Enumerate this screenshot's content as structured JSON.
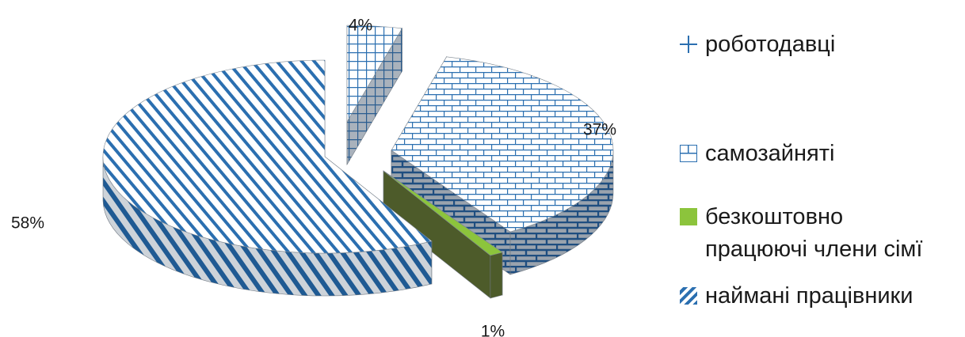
{
  "chart_data": {
    "type": "pie",
    "title": "",
    "slices": [
      {
        "name": "роботодавці",
        "value": 4,
        "label": "4%",
        "color": "#2b6fb0",
        "pattern": "grid"
      },
      {
        "name": "самозайняті",
        "value": 37,
        "label": "37%",
        "color": "#2b6fb0",
        "pattern": "brick"
      },
      {
        "name": "безкоштовно працюючі члени сімї",
        "value": 1,
        "label": "1%",
        "color": "#8cc43c",
        "pattern": "solid"
      },
      {
        "name": "наймані працівники",
        "value": 58,
        "label": "58%",
        "color": "#2b6fb0",
        "pattern": "diagonal-stripes"
      }
    ],
    "exploded": true,
    "three_d": true,
    "legend_position": "right"
  },
  "legend": {
    "items": [
      {
        "lines": [
          "роботодавці"
        ],
        "icon": "plus-grid-icon"
      },
      {
        "lines": [
          "самозайняті"
        ],
        "icon": "brick-icon"
      },
      {
        "lines": [
          "безкоштовно",
          "працюючі члени сімї"
        ],
        "icon": "solid-square-icon"
      },
      {
        "lines": [
          "наймані працівники"
        ],
        "icon": "diagonal-stripe-icon"
      }
    ]
  }
}
